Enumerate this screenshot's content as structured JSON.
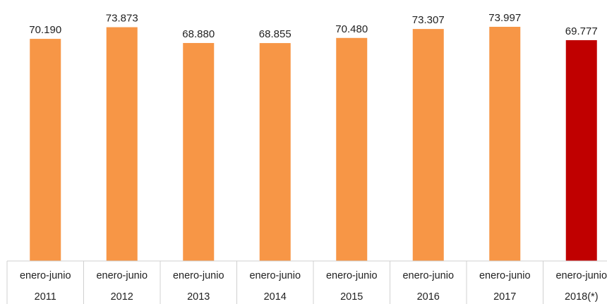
{
  "chart_data": {
    "type": "bar",
    "title": "",
    "xlabel": "",
    "ylabel": "",
    "categories": [
      [
        "enero-junio",
        "2011"
      ],
      [
        "enero-junio",
        "2012"
      ],
      [
        "enero-junio",
        "2013"
      ],
      [
        "enero-junio",
        "2014"
      ],
      [
        "enero-junio",
        "2015"
      ],
      [
        "enero-junio",
        "2016"
      ],
      [
        "enero-junio",
        "2017"
      ],
      [
        "enero-junio",
        "2018(*)"
      ]
    ],
    "values": [
      70190,
      73873,
      68880,
      68855,
      70480,
      73307,
      73997,
      69777
    ],
    "value_labels": [
      "70.190",
      "73.873",
      "68.880",
      "68.855",
      "70.480",
      "73.307",
      "73.997",
      "69.777"
    ],
    "ylim": [
      0,
      73997
    ],
    "grid": false,
    "colors": {
      "bar": "#F79646",
      "highlight_bar": "#C00000",
      "axis": "#D0D0D0",
      "text": "#222222"
    },
    "highlight_index": 7
  }
}
